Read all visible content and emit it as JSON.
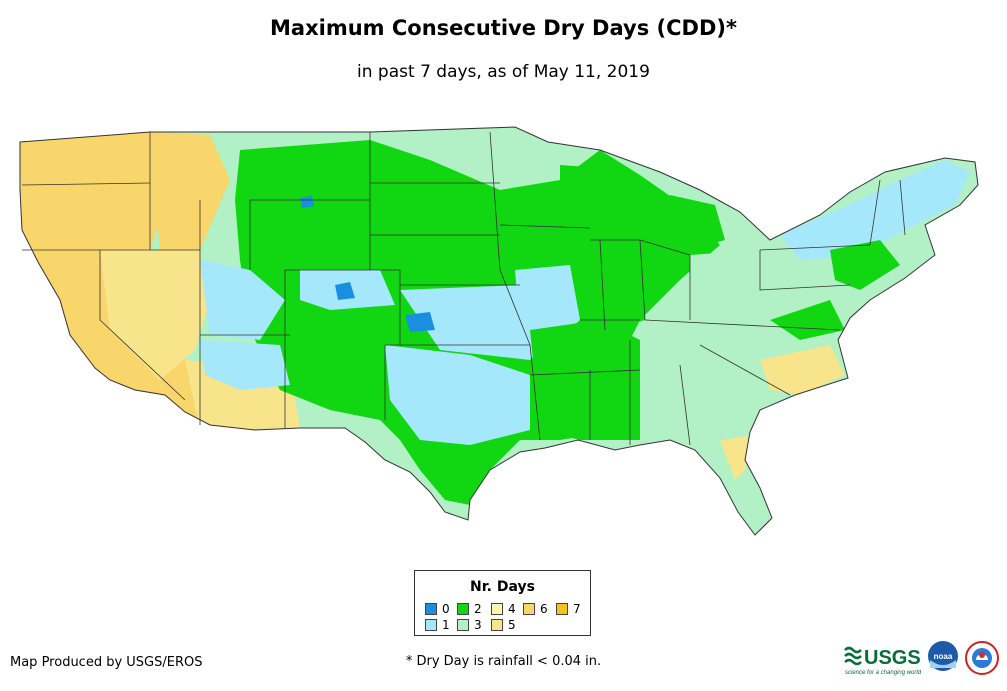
{
  "title": "Maximum Consecutive Dry Days (CDD)*",
  "subtitle": "in past 7 days, as of May 11, 2019",
  "legend": {
    "title": "Nr. Days",
    "items": [
      {
        "label": "0",
        "color": "#1a8fe0"
      },
      {
        "label": "1",
        "color": "#a6e8fb"
      },
      {
        "label": "2",
        "color": "#11d612"
      },
      {
        "label": "3",
        "color": "#b2f0c6"
      },
      {
        "label": "4",
        "color": "#f9f6b8"
      },
      {
        "label": "5",
        "color": "#f8e48a"
      },
      {
        "label": "6",
        "color": "#f8d66b"
      },
      {
        "label": "7",
        "color": "#f8c21c"
      }
    ]
  },
  "footer": {
    "produced_by": "Map Produced by USGS/EROS",
    "note": "* Dry Day is rainfall < 0.04 in."
  },
  "logos": {
    "usgs": "USGS",
    "usgs_tagline": "science for a changing world",
    "noaa": "noaa"
  },
  "colors": {
    "state_border": "#333333",
    "background": "#ffffff"
  }
}
